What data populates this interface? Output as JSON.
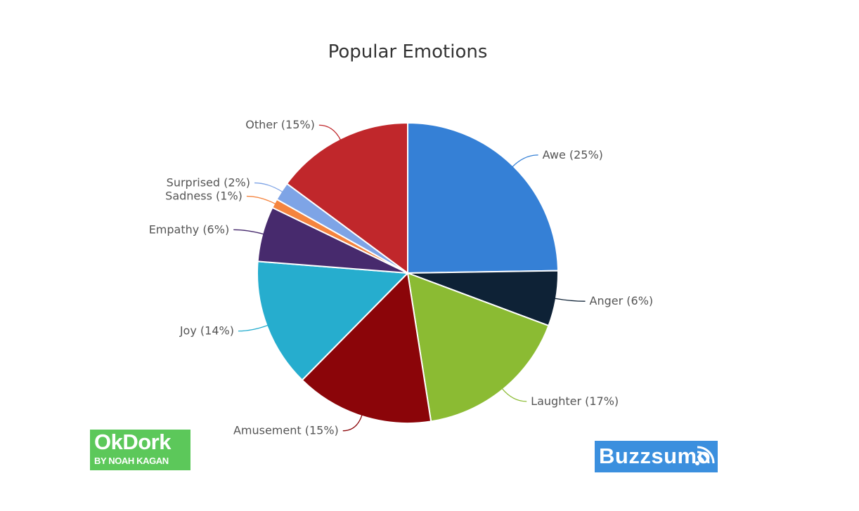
{
  "chart_data": {
    "type": "pie",
    "title": "Popular Emotions",
    "slices": [
      {
        "name": "Awe",
        "label": "Awe (25%)",
        "value": 25,
        "color": "#3580d6"
      },
      {
        "name": "Anger",
        "label": "Anger (6%)",
        "value": 6,
        "color": "#0e2236"
      },
      {
        "name": "Laughter",
        "label": "Laughter (17%)",
        "value": 17,
        "color": "#8bbb33"
      },
      {
        "name": "Amusement",
        "label": "Amusement (15%)",
        "value": 15,
        "color": "#8b0509"
      },
      {
        "name": "Joy",
        "label": "Joy (14%)",
        "value": 14,
        "color": "#26adce"
      },
      {
        "name": "Empathy",
        "label": "Empathy (6%)",
        "value": 6,
        "color": "#472a6d"
      },
      {
        "name": "Sadness",
        "label": "Sadness (1%)",
        "value": 1,
        "color": "#f5843e"
      },
      {
        "name": "Surprised",
        "label": "Surprised (2%)",
        "value": 2,
        "color": "#7ea4e6"
      },
      {
        "name": "Other",
        "label": "Other (15%)",
        "value": 15,
        "color": "#c0272b"
      }
    ]
  },
  "logos": {
    "okdork": {
      "main": "OkDork",
      "sub": "BY NOAH KAGAN",
      "color": "#5cc85a"
    },
    "buzzsumo": {
      "word": "Buzzsumo",
      "color": "#3b8fde"
    }
  }
}
